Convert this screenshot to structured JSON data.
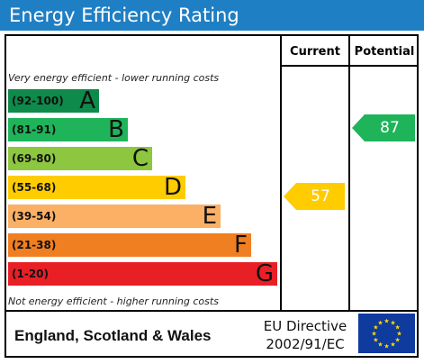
{
  "title": "Energy Efficiency Rating",
  "headers": {
    "current": "Current",
    "potential": "Potential"
  },
  "notes": {
    "top": "Very energy efficient - lower running costs",
    "bottom": "Not energy efficient - higher running costs"
  },
  "bands": [
    {
      "range": "(92-100)",
      "letter": "A",
      "color": "#0e8a4a"
    },
    {
      "range": "(81-91)",
      "letter": "B",
      "color": "#1fb45a"
    },
    {
      "range": "(69-80)",
      "letter": "C",
      "color": "#8dc63f"
    },
    {
      "range": "(55-68)",
      "letter": "D",
      "color": "#ffcc00"
    },
    {
      "range": "(39-54)",
      "letter": "E",
      "color": "#fbb065"
    },
    {
      "range": "(21-38)",
      "letter": "F",
      "color": "#f07f22"
    },
    {
      "range": "(1-20)",
      "letter": "G",
      "color": "#e91f26"
    }
  ],
  "current": {
    "value": "57",
    "band": "D",
    "color": "#ffcc00"
  },
  "potential": {
    "value": "87",
    "band": "B",
    "color": "#1fb45a"
  },
  "footer": {
    "region": "England, Scotland & Wales",
    "directive_line1": "EU Directive",
    "directive_line2": "2002/91/EC",
    "flag_icon": "eu-flag-icon"
  }
}
